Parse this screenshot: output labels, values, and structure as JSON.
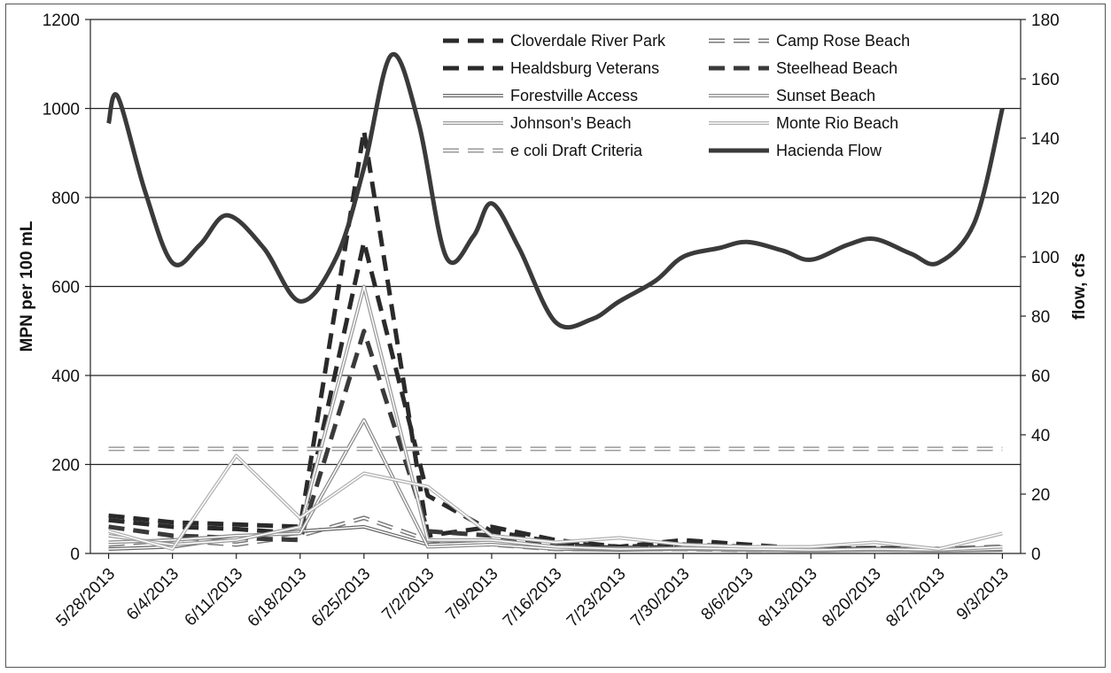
{
  "chart_data": {
    "type": "line",
    "title": "",
    "ylabel": "MPN per 100 mL",
    "y2label": "flow, cfs",
    "ylim": [
      0,
      1200
    ],
    "y2lim": [
      0,
      180
    ],
    "yticks": [
      0,
      200,
      400,
      600,
      800,
      1000,
      1200
    ],
    "y2ticks": [
      0,
      20,
      40,
      60,
      80,
      100,
      120,
      140,
      160,
      180
    ],
    "grid": "horizontal",
    "legend_position": "top-center",
    "x_ticks": [
      "5/28/2013",
      "6/4/2013",
      "6/11/2013",
      "6/18/2013",
      "6/25/2013",
      "7/2/2013",
      "7/9/2013",
      "7/16/2013",
      "7/23/2013",
      "7/30/2013",
      "8/6/2013",
      "8/13/2013",
      "8/20/2013",
      "8/27/2013",
      "9/3/2013"
    ],
    "x": [
      "5/28/2013",
      "6/4/2013",
      "6/11/2013",
      "6/18/2013",
      "6/25/2013",
      "7/2/2013",
      "7/9/2013",
      "7/16/2013",
      "7/23/2013",
      "7/30/2013",
      "8/6/2013",
      "8/13/2013",
      "8/20/2013",
      "8/27/2013",
      "9/3/2013"
    ],
    "series": [
      {
        "name": "Cloverdale River Park",
        "axis": "left",
        "style": "dash-thick",
        "color": "#2a2a2a",
        "values": [
          85,
          70,
          65,
          60,
          950,
          40,
          60,
          30,
          15,
          30,
          20,
          10,
          12,
          10,
          15
        ]
      },
      {
        "name": "Camp Rose Beach",
        "axis": "left",
        "style": "dash-outline",
        "color": "#7a7a7a",
        "values": [
          20,
          30,
          20,
          40,
          80,
          30,
          20,
          10,
          10,
          10,
          8,
          8,
          10,
          8,
          10
        ]
      },
      {
        "name": "Healdsburg Veterans",
        "axis": "left",
        "style": "dash-thick",
        "color": "#2a2a2a",
        "values": [
          75,
          60,
          55,
          45,
          700,
          130,
          50,
          25,
          15,
          20,
          15,
          10,
          12,
          10,
          12
        ]
      },
      {
        "name": "Steelhead Beach",
        "axis": "left",
        "style": "dash-thick",
        "color": "#3a3a3a",
        "values": [
          60,
          40,
          35,
          30,
          500,
          50,
          40,
          20,
          12,
          15,
          12,
          10,
          10,
          8,
          10
        ]
      },
      {
        "name": "Forestville Access",
        "axis": "left",
        "style": "solid-outline",
        "color": "#666666",
        "values": [
          10,
          15,
          35,
          50,
          60,
          20,
          25,
          10,
          8,
          10,
          8,
          6,
          8,
          6,
          8
        ]
      },
      {
        "name": "Sunset Beach",
        "axis": "left",
        "style": "solid-outline",
        "color": "#8a8a8a",
        "values": [
          25,
          30,
          40,
          45,
          300,
          15,
          20,
          10,
          12,
          10,
          8,
          6,
          8,
          6,
          10
        ]
      },
      {
        "name": "Johnson's Beach",
        "axis": "left",
        "style": "solid-outline",
        "color": "#9a9a9a",
        "values": [
          40,
          20,
          30,
          60,
          600,
          30,
          30,
          15,
          10,
          12,
          10,
          8,
          10,
          8,
          15
        ]
      },
      {
        "name": "Monte Rio Beach",
        "axis": "left",
        "style": "solid-outline",
        "color": "#b0b0b0",
        "values": [
          50,
          10,
          220,
          80,
          180,
          150,
          40,
          25,
          35,
          20,
          15,
          15,
          25,
          10,
          45
        ]
      },
      {
        "name": "e coli Draft Criteria",
        "axis": "left",
        "style": "dash-outline",
        "color": "#9a9a9a",
        "values": [
          235,
          235,
          235,
          235,
          235,
          235,
          235,
          235,
          235,
          235,
          235,
          235,
          235,
          235,
          235
        ]
      },
      {
        "name": "Hacienda Flow",
        "axis": "right",
        "style": "solid-thick",
        "color": "#3a3a3a",
        "values": [
          145,
          98,
          114,
          85,
          130,
          100,
          118,
          78,
          85,
          100,
          105,
          99,
          106,
          98,
          150
        ],
        "curve": [
          [
            "5/28/2013",
            145
          ],
          [
            "5/29/2013",
            154
          ],
          [
            "6/1/2013",
            122
          ],
          [
            "6/4/2013",
            98
          ],
          [
            "6/7/2013",
            104
          ],
          [
            "6/10/2013",
            114
          ],
          [
            "6/14/2013",
            103
          ],
          [
            "6/18/2013",
            85
          ],
          [
            "6/22/2013",
            100
          ],
          [
            "6/25/2013",
            130
          ],
          [
            "6/28/2013",
            168
          ],
          [
            "7/1/2013",
            145
          ],
          [
            "7/4/2013",
            100
          ],
          [
            "7/7/2013",
            107
          ],
          [
            "7/9/2013",
            118
          ],
          [
            "7/12/2013",
            103
          ],
          [
            "7/16/2013",
            78
          ],
          [
            "7/20/2013",
            79
          ],
          [
            "7/23/2013",
            85
          ],
          [
            "7/27/2013",
            92
          ],
          [
            "7/30/2013",
            100
          ],
          [
            "8/3/2013",
            103
          ],
          [
            "8/6/2013",
            105
          ],
          [
            "8/10/2013",
            102
          ],
          [
            "8/13/2013",
            99
          ],
          [
            "8/17/2013",
            104
          ],
          [
            "8/20/2013",
            106
          ],
          [
            "8/24/2013",
            101
          ],
          [
            "8/27/2013",
            98
          ],
          [
            "8/31/2013",
            112
          ],
          [
            "9/3/2013",
            150
          ]
        ]
      }
    ],
    "legend": [
      {
        "label": "Cloverdale River Park",
        "series": 0
      },
      {
        "label": "Camp Rose Beach",
        "series": 1
      },
      {
        "label": "Healdsburg Veterans",
        "series": 2
      },
      {
        "label": "Steelhead Beach",
        "series": 3
      },
      {
        "label": "Forestville Access",
        "series": 4
      },
      {
        "label": "Sunset Beach",
        "series": 5
      },
      {
        "label": "Johnson's Beach",
        "series": 6
      },
      {
        "label": "Monte Rio Beach",
        "series": 7
      },
      {
        "label": "e coli Draft Criteria",
        "series": 8
      },
      {
        "label": "Hacienda Flow",
        "series": 9
      }
    ]
  }
}
